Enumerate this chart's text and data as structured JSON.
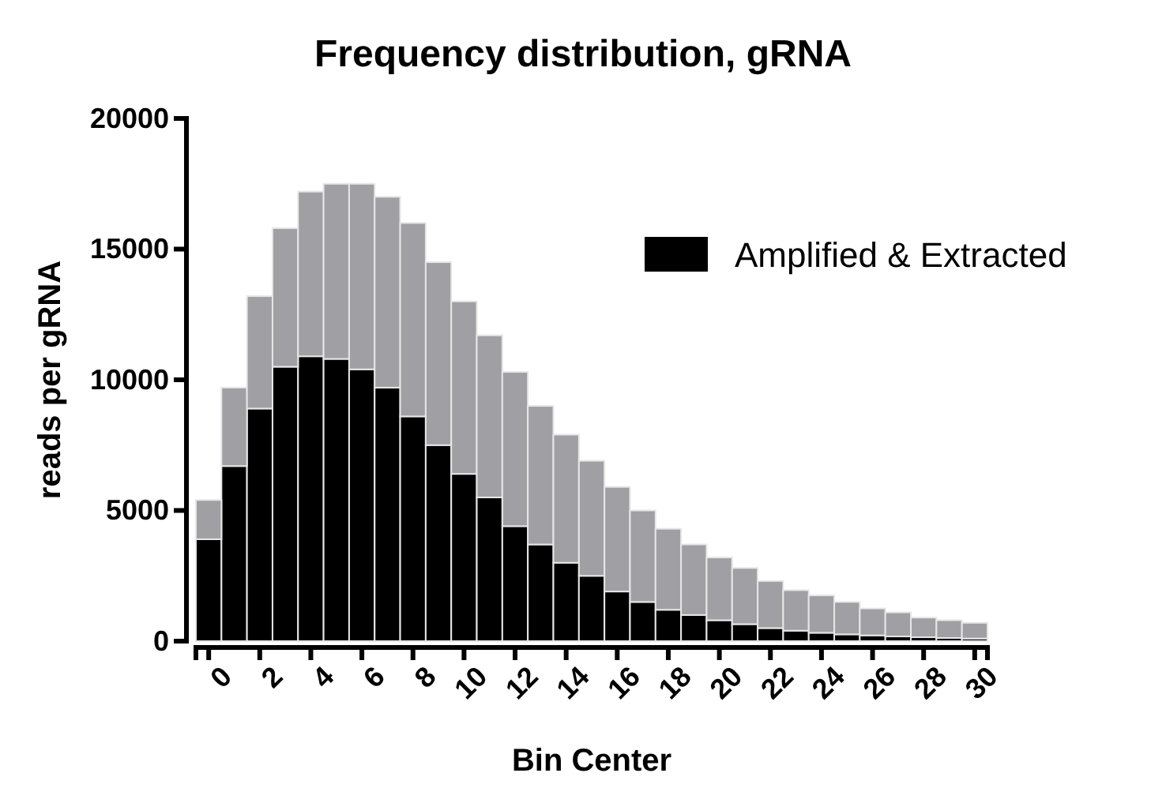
{
  "chart_data": {
    "type": "bar",
    "title": "Frequency distribution, gRNA",
    "xlabel": "Bin Center",
    "ylabel": "reads per gRNA",
    "x": [
      0,
      1,
      2,
      3,
      4,
      5,
      6,
      7,
      8,
      9,
      10,
      11,
      12,
      13,
      14,
      15,
      16,
      17,
      18,
      19,
      20,
      21,
      22,
      23,
      24,
      25,
      26,
      27,
      28,
      29,
      30
    ],
    "xlim": [
      -0.5,
      30.5
    ],
    "xticks": [
      0,
      2,
      4,
      6,
      8,
      10,
      12,
      14,
      16,
      18,
      20,
      22,
      24,
      26,
      28,
      30
    ],
    "ylim": [
      0,
      20000
    ],
    "yticks": [
      0,
      5000,
      10000,
      15000,
      20000
    ],
    "legend": "top right",
    "grid": false,
    "stacked": true,
    "series": [
      {
        "name": "Amplified & Extracted",
        "color": "#000000",
        "values": [
          3900,
          6700,
          8900,
          10500,
          10900,
          10800,
          10400,
          9700,
          8600,
          7500,
          6400,
          5500,
          4400,
          3700,
          3000,
          2500,
          1900,
          1500,
          1200,
          1000,
          800,
          650,
          500,
          400,
          320,
          260,
          220,
          180,
          150,
          120,
          100
        ]
      },
      {
        "color": "#a0a0a4",
        "values": [
          1500,
          3000,
          4300,
          5300,
          6300,
          6700,
          7100,
          7300,
          7400,
          7000,
          6600,
          6200,
          5900,
          5300,
          4900,
          4400,
          4000,
          3500,
          3100,
          2700,
          2400,
          2150,
          1800,
          1550,
          1430,
          1240,
          1030,
          920,
          750,
          680,
          600
        ]
      }
    ]
  }
}
